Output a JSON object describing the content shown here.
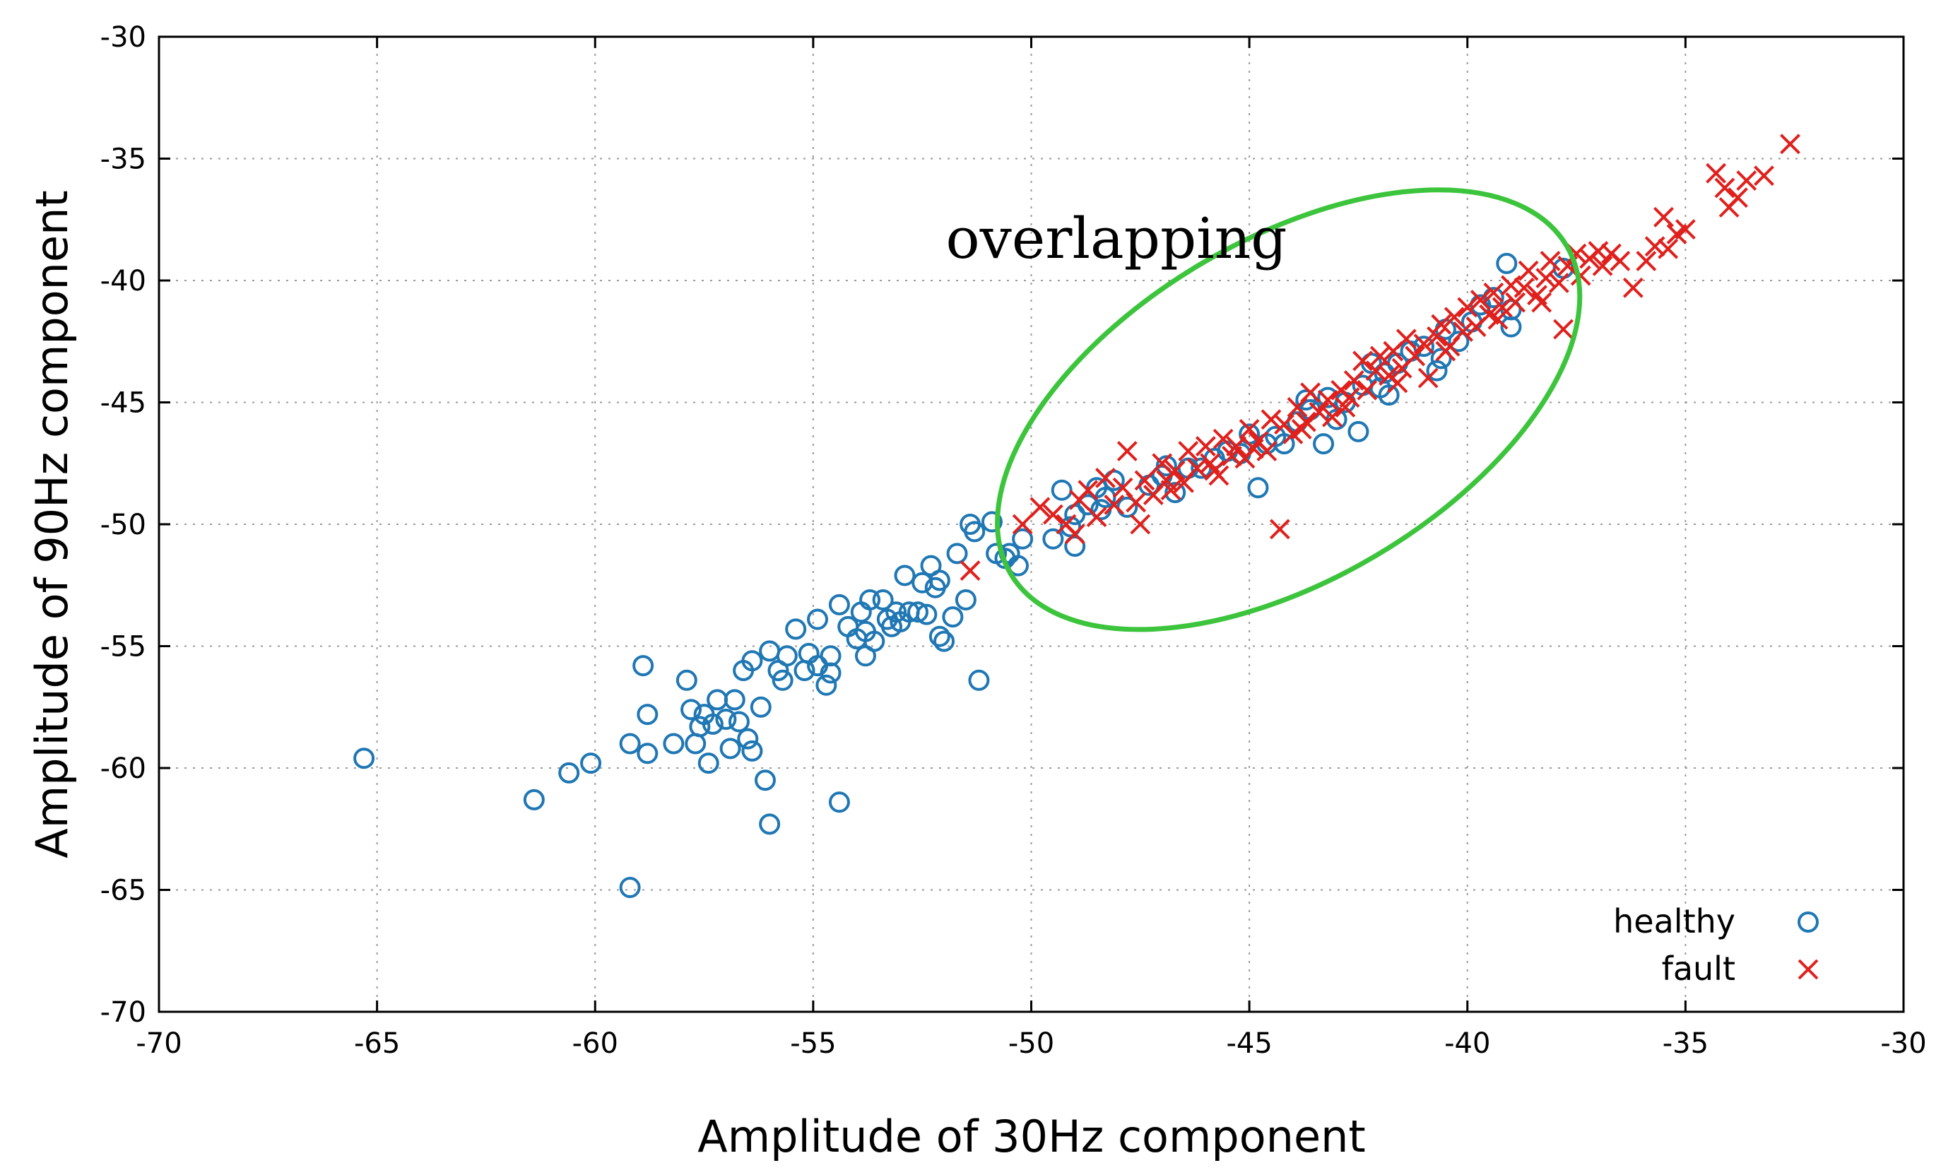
{
  "chart_data": {
    "type": "scatter",
    "title": "",
    "xlabel": "Amplitude of 30Hz component",
    "ylabel": "Amplitude of 90Hz component",
    "xlim": [
      -70,
      -30
    ],
    "ylim": [
      -70,
      -30
    ],
    "xticks": [
      -70,
      -65,
      -60,
      -55,
      -50,
      -45,
      -40,
      -35,
      -30
    ],
    "yticks": [
      -70,
      -65,
      -60,
      -55,
      -50,
      -45,
      -40,
      -35,
      -30
    ],
    "xtick_labels": [
      "-70",
      "-65",
      "-60",
      "-55",
      "-50",
      "-45",
      "-40",
      "-35",
      "-30"
    ],
    "ytick_labels": [
      "-70",
      "-65",
      "-60",
      "-55",
      "-50",
      "-45",
      "-40",
      "-35",
      "-30"
    ],
    "grid": true,
    "legend_position": "bottom-right",
    "annotation": {
      "text": "overlapping",
      "ellipse_center": [
        -44.1,
        -45.3
      ],
      "ellipse_semi_axes": [
        7.4,
        3.9
      ],
      "ellipse_angle_deg": 30.5
    },
    "colors": {
      "healthy": "#1f77b4",
      "fault": "#e0201c",
      "ellipse": "#3cc43c"
    },
    "series": [
      {
        "name": "healthy",
        "marker": "circle",
        "points": [
          [
            -65.3,
            -59.6
          ],
          [
            -61.4,
            -61.3
          ],
          [
            -60.6,
            -60.2
          ],
          [
            -60.1,
            -59.8
          ],
          [
            -59.2,
            -64.9
          ],
          [
            -59.2,
            -59.0
          ],
          [
            -58.9,
            -55.8
          ],
          [
            -58.8,
            -59.4
          ],
          [
            -58.8,
            -57.8
          ],
          [
            -58.2,
            -59.0
          ],
          [
            -57.9,
            -56.4
          ],
          [
            -57.8,
            -57.6
          ],
          [
            -57.7,
            -59.0
          ],
          [
            -57.6,
            -58.3
          ],
          [
            -57.5,
            -57.8
          ],
          [
            -57.4,
            -59.8
          ],
          [
            -57.3,
            -58.2
          ],
          [
            -57.2,
            -57.2
          ],
          [
            -57.0,
            -58.0
          ],
          [
            -56.9,
            -59.2
          ],
          [
            -56.8,
            -57.2
          ],
          [
            -56.7,
            -58.1
          ],
          [
            -56.6,
            -56.0
          ],
          [
            -56.5,
            -58.8
          ],
          [
            -56.4,
            -55.6
          ],
          [
            -56.4,
            -59.3
          ],
          [
            -56.2,
            -57.5
          ],
          [
            -56.1,
            -60.5
          ],
          [
            -56.0,
            -62.3
          ],
          [
            -56.0,
            -55.2
          ],
          [
            -55.8,
            -56.0
          ],
          [
            -55.7,
            -56.4
          ],
          [
            -55.6,
            -55.4
          ],
          [
            -55.4,
            -54.3
          ],
          [
            -55.2,
            -56.0
          ],
          [
            -55.1,
            -55.3
          ],
          [
            -54.9,
            -55.8
          ],
          [
            -54.9,
            -53.9
          ],
          [
            -54.7,
            -56.6
          ],
          [
            -54.6,
            -55.4
          ],
          [
            -54.6,
            -56.1
          ],
          [
            -54.4,
            -61.4
          ],
          [
            -54.4,
            -53.3
          ],
          [
            -54.2,
            -54.2
          ],
          [
            -54.0,
            -54.7
          ],
          [
            -53.9,
            -53.6
          ],
          [
            -53.8,
            -55.4
          ],
          [
            -53.8,
            -54.4
          ],
          [
            -53.7,
            -53.1
          ],
          [
            -53.6,
            -54.8
          ],
          [
            -53.4,
            -53.1
          ],
          [
            -53.3,
            -53.9
          ],
          [
            -53.2,
            -54.2
          ],
          [
            -53.1,
            -53.6
          ],
          [
            -53.0,
            -54.0
          ],
          [
            -52.9,
            -52.1
          ],
          [
            -52.8,
            -53.6
          ],
          [
            -52.6,
            -53.6
          ],
          [
            -52.5,
            -52.4
          ],
          [
            -52.4,
            -53.7
          ],
          [
            -52.3,
            -51.7
          ],
          [
            -52.2,
            -52.6
          ],
          [
            -52.1,
            -52.3
          ],
          [
            -52.1,
            -54.6
          ],
          [
            -52.0,
            -54.8
          ],
          [
            -51.8,
            -53.8
          ],
          [
            -51.7,
            -51.2
          ],
          [
            -51.5,
            -53.1
          ],
          [
            -51.4,
            -50.0
          ],
          [
            -51.3,
            -50.3
          ],
          [
            -51.2,
            -56.4
          ],
          [
            -50.9,
            -49.9
          ],
          [
            -50.8,
            -51.2
          ],
          [
            -50.6,
            -51.4
          ],
          [
            -50.5,
            -51.2
          ],
          [
            -50.3,
            -51.7
          ],
          [
            -50.2,
            -50.6
          ],
          [
            -49.5,
            -50.6
          ],
          [
            -49.3,
            -48.6
          ],
          [
            -49.1,
            -50.1
          ],
          [
            -49.0,
            -50.9
          ],
          [
            -49.0,
            -49.6
          ],
          [
            -48.7,
            -49.2
          ],
          [
            -48.5,
            -48.5
          ],
          [
            -48.4,
            -49.4
          ],
          [
            -48.1,
            -48.2
          ],
          [
            -47.8,
            -49.3
          ],
          [
            -47.3,
            -48.4
          ],
          [
            -47.0,
            -48.0
          ],
          [
            -46.7,
            -48.7
          ],
          [
            -46.4,
            -47.7
          ],
          [
            -46.1,
            -47.7
          ],
          [
            -45.8,
            -47.3
          ],
          [
            -45.5,
            -47.0
          ],
          [
            -45.2,
            -47.1
          ],
          [
            -44.8,
            -48.5
          ],
          [
            -44.6,
            -46.7
          ],
          [
            -44.4,
            -46.4
          ],
          [
            -44.2,
            -46.7
          ],
          [
            -43.9,
            -45.8
          ],
          [
            -43.6,
            -45.3
          ],
          [
            -43.3,
            -46.7
          ],
          [
            -43.2,
            -44.8
          ],
          [
            -43.0,
            -45.7
          ],
          [
            -42.8,
            -45.0
          ],
          [
            -42.5,
            -46.2
          ],
          [
            -42.4,
            -44.3
          ],
          [
            -42.2,
            -43.4
          ],
          [
            -42.0,
            -44.4
          ],
          [
            -41.8,
            -44.7
          ],
          [
            -41.6,
            -43.4
          ],
          [
            -41.3,
            -42.9
          ],
          [
            -41.0,
            -42.7
          ],
          [
            -40.7,
            -43.7
          ],
          [
            -40.5,
            -42.0
          ],
          [
            -40.2,
            -42.5
          ],
          [
            -39.9,
            -41.7
          ],
          [
            -39.7,
            -41.0
          ],
          [
            -39.4,
            -40.7
          ],
          [
            -39.1,
            -39.3
          ],
          [
            -39.0,
            -41.9
          ],
          [
            -37.8,
            -39.5
          ],
          [
            -39.0,
            -41.2
          ],
          [
            -40.6,
            -43.2
          ],
          [
            -41.9,
            -43.8
          ],
          [
            -43.7,
            -44.9
          ],
          [
            -45.0,
            -46.3
          ],
          [
            -46.9,
            -47.6
          ],
          [
            -48.3,
            -48.9
          ]
        ]
      },
      {
        "name": "fault",
        "marker": "x",
        "points": [
          [
            -51.4,
            -51.9
          ],
          [
            -50.2,
            -50.0
          ],
          [
            -49.8,
            -49.3
          ],
          [
            -49.5,
            -49.6
          ],
          [
            -49.2,
            -50.0
          ],
          [
            -48.9,
            -49.0
          ],
          [
            -48.7,
            -48.6
          ],
          [
            -48.5,
            -49.7
          ],
          [
            -48.3,
            -48.1
          ],
          [
            -48.1,
            -49.2
          ],
          [
            -47.9,
            -48.5
          ],
          [
            -47.8,
            -47.0
          ],
          [
            -47.6,
            -49.1
          ],
          [
            -47.5,
            -50.0
          ],
          [
            -47.4,
            -48.2
          ],
          [
            -47.2,
            -48.8
          ],
          [
            -47.0,
            -47.5
          ],
          [
            -46.9,
            -48.2
          ],
          [
            -46.7,
            -47.8
          ],
          [
            -46.5,
            -48.3
          ],
          [
            -46.4,
            -47.0
          ],
          [
            -46.2,
            -47.7
          ],
          [
            -46.0,
            -46.8
          ],
          [
            -45.9,
            -47.5
          ],
          [
            -45.7,
            -48.0
          ],
          [
            -45.6,
            -46.5
          ],
          [
            -45.4,
            -47.2
          ],
          [
            -45.3,
            -46.8
          ],
          [
            -45.1,
            -47.3
          ],
          [
            -45.0,
            -46.1
          ],
          [
            -44.8,
            -46.6
          ],
          [
            -44.6,
            -47.0
          ],
          [
            -44.5,
            -45.7
          ],
          [
            -44.3,
            -50.2
          ],
          [
            -44.2,
            -45.9
          ],
          [
            -44.0,
            -46.3
          ],
          [
            -43.9,
            -45.2
          ],
          [
            -43.7,
            -45.8
          ],
          [
            -43.6,
            -44.6
          ],
          [
            -43.4,
            -45.4
          ],
          [
            -43.2,
            -44.9
          ],
          [
            -43.1,
            -45.6
          ],
          [
            -42.9,
            -44.5
          ],
          [
            -42.8,
            -45.2
          ],
          [
            -42.6,
            -44.1
          ],
          [
            -42.4,
            -43.3
          ],
          [
            -42.3,
            -44.5
          ],
          [
            -42.1,
            -43.7
          ],
          [
            -42.0,
            -43.1
          ],
          [
            -41.8,
            -43.9
          ],
          [
            -41.7,
            -42.9
          ],
          [
            -41.5,
            -43.6
          ],
          [
            -41.4,
            -42.4
          ],
          [
            -41.2,
            -43.1
          ],
          [
            -41.0,
            -42.6
          ],
          [
            -40.9,
            -44.0
          ],
          [
            -40.7,
            -42.3
          ],
          [
            -40.6,
            -41.8
          ],
          [
            -40.4,
            -42.7
          ],
          [
            -40.3,
            -41.5
          ],
          [
            -40.1,
            -42.1
          ],
          [
            -40.0,
            -41.1
          ],
          [
            -39.8,
            -41.9
          ],
          [
            -39.7,
            -40.8
          ],
          [
            -39.5,
            -41.4
          ],
          [
            -39.4,
            -40.5
          ],
          [
            -39.2,
            -41.1
          ],
          [
            -39.0,
            -40.2
          ],
          [
            -38.9,
            -40.9
          ],
          [
            -38.7,
            -40.3
          ],
          [
            -38.6,
            -39.6
          ],
          [
            -38.4,
            -40.6
          ],
          [
            -38.2,
            -39.9
          ],
          [
            -38.1,
            -39.2
          ],
          [
            -37.9,
            -40.1
          ],
          [
            -37.8,
            -42.0
          ],
          [
            -37.7,
            -39.4
          ],
          [
            -37.5,
            -38.9
          ],
          [
            -37.4,
            -39.8
          ],
          [
            -37.2,
            -39.1
          ],
          [
            -37.0,
            -38.8
          ],
          [
            -36.9,
            -39.4
          ],
          [
            -36.7,
            -38.9
          ],
          [
            -36.5,
            -39.2
          ],
          [
            -36.2,
            -40.3
          ],
          [
            -35.9,
            -39.2
          ],
          [
            -35.7,
            -38.6
          ],
          [
            -35.5,
            -37.4
          ],
          [
            -35.4,
            -38.7
          ],
          [
            -35.2,
            -38.1
          ],
          [
            -35.0,
            -37.9
          ],
          [
            -34.3,
            -35.6
          ],
          [
            -34.1,
            -36.2
          ],
          [
            -34.0,
            -37.0
          ],
          [
            -33.8,
            -36.6
          ],
          [
            -33.6,
            -35.9
          ],
          [
            -33.2,
            -35.7
          ],
          [
            -32.6,
            -34.4
          ],
          [
            -46.8,
            -48.6
          ],
          [
            -45.8,
            -47.8
          ],
          [
            -44.9,
            -46.9
          ],
          [
            -43.8,
            -46.1
          ],
          [
            -42.7,
            -44.8
          ],
          [
            -41.6,
            -44.2
          ],
          [
            -40.5,
            -42.9
          ],
          [
            -39.3,
            -41.6
          ],
          [
            -38.3,
            -40.9
          ],
          [
            -49.0,
            -50.4
          ]
        ]
      }
    ]
  }
}
